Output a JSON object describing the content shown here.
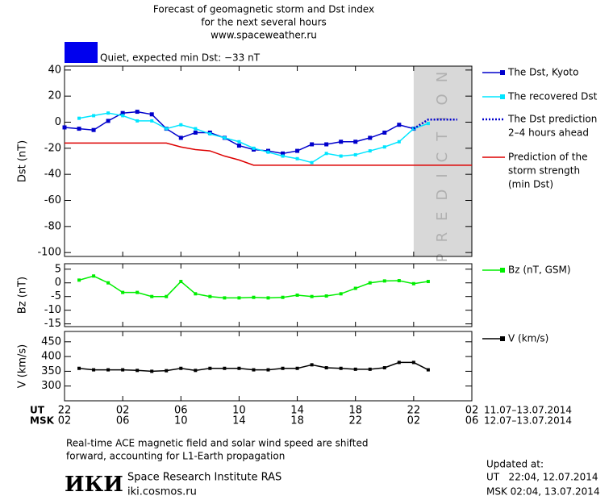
{
  "header": {
    "title_lines": [
      "Forecast of geomagnetic storm and Dst index",
      "for the next several hours",
      "www.spaceweather.ru"
    ],
    "status": "Quiet, expected min Dst: −33 nT",
    "status_color": "#0000ee"
  },
  "chart_data": [
    {
      "type": "line",
      "y_label": "Dst (nT)",
      "xlim": [
        0,
        28
      ],
      "ylim": [
        -103,
        43
      ],
      "yticks": [
        40,
        20,
        0,
        -20,
        -40,
        -60,
        -80,
        -100
      ],
      "prediction_region": {
        "xlim": [
          24,
          28
        ],
        "label": "PREDICTION",
        "color": "#d8d8d8"
      },
      "series": [
        {
          "name": [
            "The Dst, Kyoto"
          ],
          "color": "#0000cc",
          "marker": "square",
          "marker_size": 5,
          "line_style": "solid",
          "x": [
            0,
            1,
            2,
            3,
            4,
            5,
            6,
            7,
            8,
            9,
            10,
            11,
            12,
            13,
            14,
            15,
            16,
            17,
            18,
            19,
            20,
            21,
            22,
            23,
            24
          ],
          "values": [
            -4,
            -5,
            -6,
            1,
            7,
            8,
            6,
            -5,
            -12,
            -8,
            -8,
            -12,
            -18,
            -21,
            -22,
            -24,
            -22,
            -17,
            -17,
            -15,
            -15,
            -12,
            -8,
            -2,
            -5
          ]
        },
        {
          "name": [
            "The recovered Dst"
          ],
          "color": "#00e5ff",
          "marker": "square",
          "marker_size": 4,
          "line_style": "solid",
          "x": [
            1,
            2,
            3,
            4,
            5,
            6,
            7,
            8,
            9,
            10,
            11,
            12,
            13,
            14,
            15,
            16,
            17,
            18,
            19,
            20,
            21,
            22,
            23,
            24,
            25
          ],
          "values": [
            3,
            5,
            7,
            5,
            1,
            1,
            -5,
            -2,
            -5,
            -9,
            -12,
            -15,
            -20,
            -23,
            -26,
            -28,
            -31,
            -24,
            -26,
            -25,
            -22,
            -19,
            -15,
            -5,
            -1
          ]
        },
        {
          "name": [
            "The Dst prediction",
            "2–4 hours ahead"
          ],
          "color": "#0000cc",
          "marker": "none",
          "line_style": "dotted",
          "x": [
            24,
            25,
            26,
            27
          ],
          "values": [
            -5,
            2,
            2,
            2
          ]
        },
        {
          "name": [
            "Prediction of the",
            "storm strength",
            "(min Dst)"
          ],
          "color": "#dd0000",
          "marker": "none",
          "line_style": "solid",
          "x": [
            0,
            7,
            8,
            9,
            10,
            11,
            12,
            13,
            28
          ],
          "values": [
            -16,
            -16,
            -19,
            -21,
            -22,
            -26,
            -29,
            -33,
            -33
          ]
        }
      ]
    },
    {
      "type": "line",
      "y_label": "Bz (nT)",
      "xlim": [
        0,
        28
      ],
      "ylim": [
        -16,
        7
      ],
      "yticks": [
        5,
        0,
        -5,
        -10,
        -15
      ],
      "series": [
        {
          "name": [
            "Bz (nT, GSM)"
          ],
          "color": "#00ee00",
          "marker": "square",
          "marker_size": 4,
          "line_style": "solid",
          "x": [
            1,
            2,
            3,
            4,
            5,
            6,
            7,
            8,
            9,
            10,
            11,
            12,
            13,
            14,
            15,
            16,
            17,
            18,
            19,
            20,
            21,
            22,
            23,
            24,
            25
          ],
          "values": [
            1,
            2.5,
            0,
            -3.5,
            -3.5,
            -5,
            -5,
            0.5,
            -4,
            -5,
            -5.5,
            -5.5,
            -5.3,
            -5.5,
            -5.3,
            -4.5,
            -5,
            -4.8,
            -4,
            -2,
            0,
            0.7,
            0.8,
            -0.3,
            0.5
          ]
        }
      ]
    },
    {
      "type": "line",
      "y_label": "V (km/s)",
      "xlim": [
        0,
        28
      ],
      "ylim": [
        250,
        485
      ],
      "yticks": [
        450,
        400,
        350,
        300
      ],
      "xticks": [
        {
          "value": 0,
          "label": "22"
        },
        {
          "value": 4,
          "label": "02"
        },
        {
          "value": 8,
          "label": "06"
        },
        {
          "value": 12,
          "label": "10"
        },
        {
          "value": 16,
          "label": "14"
        },
        {
          "value": 20,
          "label": "18"
        },
        {
          "value": 24,
          "label": "22"
        },
        {
          "value": 28,
          "label": "02"
        }
      ],
      "msk_tick_labels": [
        "02",
        "06",
        "10",
        "14",
        "18",
        "22",
        "02",
        "06"
      ],
      "ut_label": "UT",
      "msk_label": "MSK",
      "ut_dates": "11.07–13.07.2014",
      "msk_dates": "12.07–13.07.2014",
      "series": [
        {
          "name": [
            "V (km/s)"
          ],
          "color": "#000000",
          "marker": "square",
          "marker_size": 4,
          "line_style": "solid",
          "x": [
            1,
            2,
            3,
            4,
            5,
            6,
            7,
            8,
            9,
            10,
            11,
            12,
            13,
            14,
            15,
            16,
            17,
            18,
            19,
            20,
            21,
            22,
            23,
            24,
            25
          ],
          "values": [
            360,
            355,
            355,
            355,
            353,
            350,
            352,
            360,
            353,
            360,
            360,
            360,
            355,
            355,
            360,
            360,
            372,
            362,
            360,
            357,
            357,
            362,
            380,
            380,
            355
          ]
        }
      ]
    }
  ],
  "footer": {
    "note_lines": [
      "Real-time ACE magnetic field and solar wind speed are shifted",
      "forward, accounting for L1-Earth propagation"
    ],
    "logo": "ИКИ",
    "institute": "Space Research Institute RAS",
    "site": "iki.cosmos.ru",
    "updated_lines": [
      "Updated at:",
      "UT   22:04, 12.07.2014",
      "MSK 02:04, 13.07.2014"
    ]
  }
}
